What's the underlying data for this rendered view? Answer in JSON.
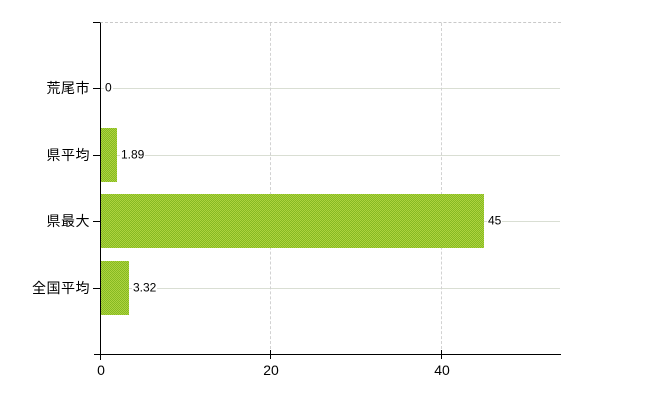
{
  "chart_data": {
    "type": "bar",
    "orientation": "horizontal",
    "title": "",
    "xlabel": "",
    "ylabel": "",
    "categories": [
      "荒尾市",
      "県平均",
      "県最大",
      "全国平均"
    ],
    "values": [
      0,
      1.89,
      45,
      3.32
    ],
    "value_labels": [
      "0",
      "1.89",
      "45",
      "3.32"
    ],
    "x_ticks": [
      0,
      20,
      40
    ],
    "x_tick_labels": [
      "0",
      "20",
      "40"
    ],
    "xlim": [
      0,
      54
    ],
    "grid": true,
    "legend": false,
    "colors": {
      "bar_light": "#aed33f",
      "bar_dark": "#85ba22",
      "bar_avg": "#9ac630",
      "h_grid": "#d9ded3",
      "v_grid": "#d2d2d2",
      "top_border": "#c9c9c9",
      "axis": "#000000",
      "text": "#000000",
      "background": "#ffffff"
    }
  }
}
